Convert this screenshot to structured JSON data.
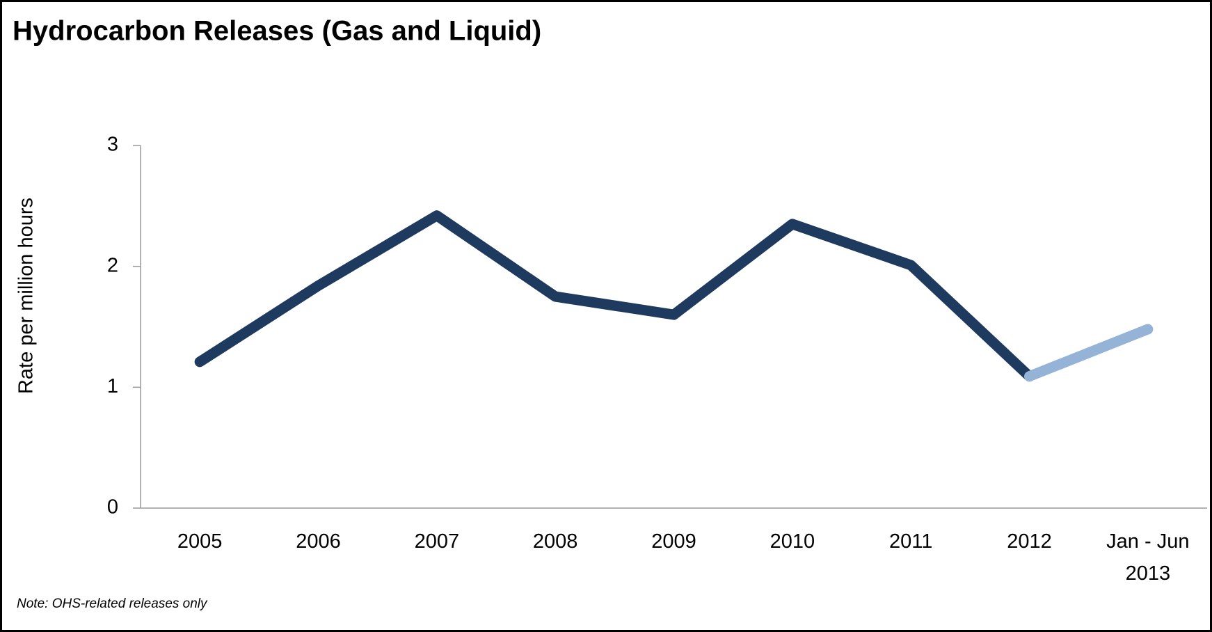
{
  "chart_data": {
    "type": "line",
    "title": "Hydrocarbon Releases (Gas and Liquid)",
    "ylabel": "Rate per million hours",
    "note": "Note: OHS-related releases only",
    "categories": [
      "2005",
      "2006",
      "2007",
      "2008",
      "2009",
      "2010",
      "2011",
      "2012",
      "Jan - Jun\n2013"
    ],
    "series": [
      {
        "color": "#1f3a5f",
        "values": [
          1.21,
          1.84,
          2.42,
          1.75,
          1.6,
          2.35,
          2.01,
          1.09,
          null
        ]
      },
      {
        "color": "#95b3d7",
        "values": [
          null,
          null,
          null,
          null,
          null,
          null,
          null,
          1.09,
          1.48
        ]
      }
    ],
    "ylim": [
      0,
      3
    ],
    "yticks": [
      0,
      1,
      2,
      3
    ],
    "grid": false
  }
}
